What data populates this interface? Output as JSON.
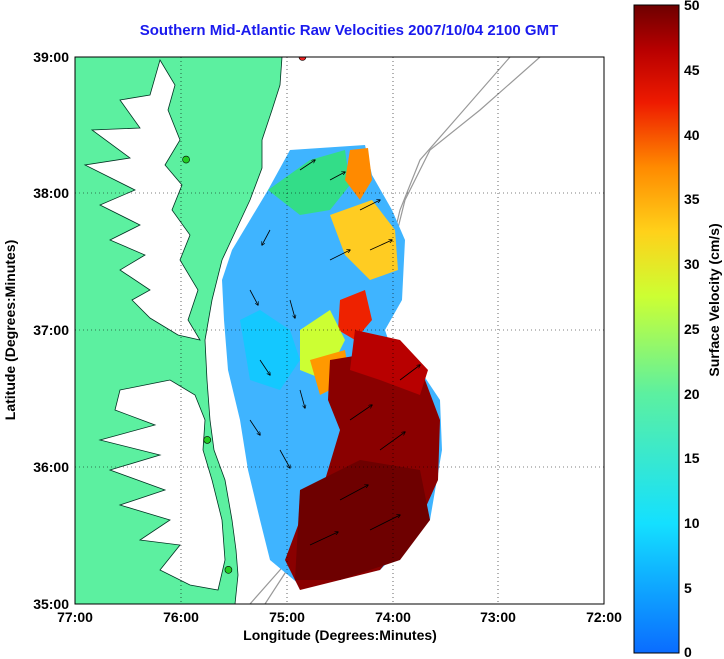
{
  "title": "Southern Mid-Atlantic Raw Velocities 2007/10/04 2100 GMT",
  "x_axis": {
    "label": "Longitude (Degrees:Minutes)",
    "ticks": [
      "77:00",
      "76:00",
      "75:00",
      "74:00",
      "73:00",
      "72:00"
    ]
  },
  "y_axis": {
    "label": "Latitude (Degrees:Minutes)",
    "ticks": [
      "39:00",
      "38:00",
      "37:00",
      "36:00",
      "35:00"
    ]
  },
  "colorbar": {
    "label": "Surface Velocity (cm/s)",
    "ticks": [
      "50",
      "45",
      "40",
      "35",
      "30",
      "25",
      "20",
      "15",
      "10",
      "5",
      "0"
    ],
    "min": 0,
    "max": 50,
    "colormap": "jet"
  },
  "colors": {
    "land": "#5cf0a0",
    "title": "#1a1aee",
    "station_green": "#22cc22",
    "station_red": "#ee2222"
  },
  "map_extent": {
    "lon_min": -77,
    "lon_max": -72,
    "lat_min": 35,
    "lat_max": 39
  },
  "stations": [
    {
      "lon": -74.85,
      "lat": 39.0,
      "color": "red"
    },
    {
      "lon": -75.95,
      "lat": 38.25,
      "color": "green"
    },
    {
      "lon": -75.75,
      "lat": 36.2,
      "color": "green"
    },
    {
      "lon": -75.55,
      "lat": 35.25,
      "color": "green"
    }
  ],
  "grid": true
}
